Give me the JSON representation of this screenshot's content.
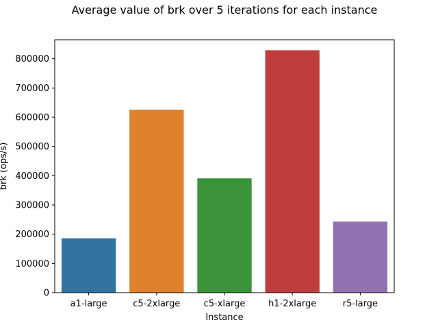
{
  "chart_data": {
    "type": "bar",
    "title": "Average value of brk over 5 iterations for each instance",
    "xlabel": "Instance",
    "ylabel": "brk (ops/s)",
    "categories": [
      "a1-large",
      "c5-2xlarge",
      "c5-xlarge",
      "h1-2xlarge",
      "r5-large"
    ],
    "values": [
      186000,
      626000,
      391000,
      829000,
      243000
    ],
    "colors": [
      "#3274a1",
      "#e1812c",
      "#3a923a",
      "#c03d3e",
      "#9372b2"
    ],
    "ylim": [
      0,
      865000
    ],
    "yticks": [
      0,
      100000,
      200000,
      300000,
      400000,
      500000,
      600000,
      700000,
      800000
    ],
    "ytick_labels": [
      "0",
      "100000",
      "200000",
      "300000",
      "400000",
      "500000",
      "600000",
      "700000",
      "800000"
    ],
    "grid": false
  }
}
